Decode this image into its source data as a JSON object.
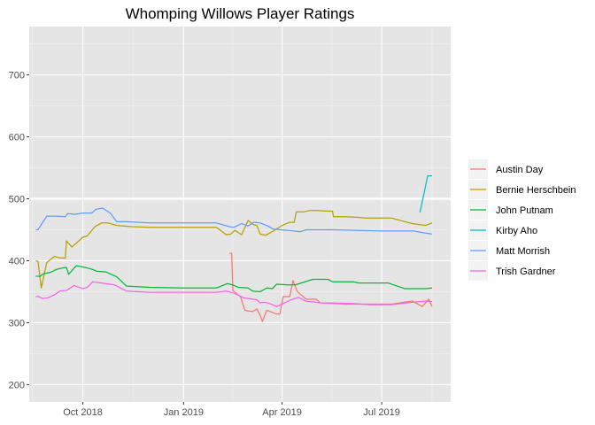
{
  "chart_data": {
    "type": "line",
    "title": "Whomping Willows Player Ratings",
    "xlabel": "",
    "ylabel": "",
    "xlim": [
      "2018-08-13",
      "2019-09-02"
    ],
    "ylim": [
      172,
      778
    ],
    "x_ticks": [
      {
        "date": "2018-10-01",
        "label": "Oct 2018"
      },
      {
        "date": "2019-01-01",
        "label": "Jan 2019"
      },
      {
        "date": "2019-04-01",
        "label": "Apr 2019"
      },
      {
        "date": "2019-07-01",
        "label": "Jul 2019"
      }
    ],
    "y_ticks": [
      200,
      300,
      400,
      500,
      600,
      700
    ],
    "reference_line": {
      "y": 500,
      "color": "#ffffff"
    },
    "grid": true,
    "background": "#e5e5e5",
    "legend_position": "right",
    "series": [
      {
        "name": "Austin Day",
        "color": "#F8766D",
        "points": [
          [
            "2019-02-12",
            412
          ],
          [
            "2019-02-14",
            412
          ],
          [
            "2019-02-15",
            352
          ],
          [
            "2019-02-22",
            342
          ],
          [
            "2019-02-26",
            320
          ],
          [
            "2019-03-05",
            318
          ],
          [
            "2019-03-09",
            322
          ],
          [
            "2019-03-12",
            312
          ],
          [
            "2019-03-14",
            302
          ],
          [
            "2019-03-18",
            320
          ],
          [
            "2019-03-27",
            314
          ],
          [
            "2019-03-30",
            314
          ],
          [
            "2019-04-02",
            342
          ],
          [
            "2019-04-08",
            342
          ],
          [
            "2019-04-11",
            368
          ],
          [
            "2019-04-15",
            350
          ],
          [
            "2019-04-23",
            338
          ],
          [
            "2019-05-02",
            338
          ],
          [
            "2019-05-06",
            332
          ],
          [
            "2019-05-28",
            330
          ],
          [
            "2019-06-20",
            330
          ],
          [
            "2019-07-10",
            330
          ],
          [
            "2019-07-29",
            335
          ],
          [
            "2019-08-07",
            326
          ],
          [
            "2019-08-13",
            338
          ],
          [
            "2019-08-16",
            326
          ]
        ]
      },
      {
        "name": "Bernie Herschbein",
        "color": "#B79F00",
        "points": [
          [
            "2018-08-19",
            400
          ],
          [
            "2018-08-21",
            399
          ],
          [
            "2018-08-24",
            356
          ],
          [
            "2018-08-29",
            397
          ],
          [
            "2018-09-05",
            407
          ],
          [
            "2018-09-09",
            405
          ],
          [
            "2018-09-15",
            404
          ],
          [
            "2018-09-16",
            432
          ],
          [
            "2018-09-21",
            422
          ],
          [
            "2018-10-01",
            438
          ],
          [
            "2018-10-05",
            440
          ],
          [
            "2018-10-12",
            455
          ],
          [
            "2018-10-18",
            461
          ],
          [
            "2018-10-24",
            461
          ],
          [
            "2018-11-01",
            457
          ],
          [
            "2018-11-15",
            455
          ],
          [
            "2018-12-01",
            454
          ],
          [
            "2019-01-01",
            454
          ],
          [
            "2019-01-31",
            454
          ],
          [
            "2019-02-03",
            450
          ],
          [
            "2019-02-09",
            442
          ],
          [
            "2019-02-13",
            443
          ],
          [
            "2019-02-17",
            449
          ],
          [
            "2019-02-23",
            442
          ],
          [
            "2019-03-01",
            465
          ],
          [
            "2019-03-06",
            458
          ],
          [
            "2019-03-09",
            457
          ],
          [
            "2019-03-12",
            443
          ],
          [
            "2019-03-17",
            441
          ],
          [
            "2019-03-24",
            448
          ],
          [
            "2019-04-01",
            457
          ],
          [
            "2019-04-08",
            462
          ],
          [
            "2019-04-12",
            462
          ],
          [
            "2019-04-14",
            479
          ],
          [
            "2019-04-21",
            479
          ],
          [
            "2019-04-26",
            481
          ],
          [
            "2019-05-03",
            481
          ],
          [
            "2019-05-14",
            480
          ],
          [
            "2019-05-17",
            480
          ],
          [
            "2019-05-18",
            471
          ],
          [
            "2019-05-28",
            471
          ],
          [
            "2019-06-10",
            470
          ],
          [
            "2019-06-16",
            469
          ],
          [
            "2019-07-01",
            469
          ],
          [
            "2019-07-10",
            469
          ],
          [
            "2019-07-20",
            464
          ],
          [
            "2019-07-29",
            460
          ],
          [
            "2019-08-10",
            457
          ],
          [
            "2019-08-16",
            461
          ]
        ]
      },
      {
        "name": "John Putnam",
        "color": "#00BA38",
        "points": [
          [
            "2018-08-19",
            375
          ],
          [
            "2018-08-23",
            375
          ],
          [
            "2018-08-26",
            379
          ],
          [
            "2018-09-01",
            381
          ],
          [
            "2018-09-07",
            386
          ],
          [
            "2018-09-14",
            389
          ],
          [
            "2018-09-16",
            389
          ],
          [
            "2018-09-18",
            378
          ],
          [
            "2018-09-25",
            392
          ],
          [
            "2018-10-01",
            390
          ],
          [
            "2018-10-08",
            387
          ],
          [
            "2018-10-14",
            383
          ],
          [
            "2018-10-22",
            382
          ],
          [
            "2018-11-01",
            374
          ],
          [
            "2018-11-10",
            359
          ],
          [
            "2018-12-01",
            357
          ],
          [
            "2019-01-01",
            356
          ],
          [
            "2019-01-31",
            356
          ],
          [
            "2019-02-10",
            363
          ],
          [
            "2019-02-15",
            361
          ],
          [
            "2019-02-20",
            357
          ],
          [
            "2019-03-01",
            356
          ],
          [
            "2019-03-05",
            351
          ],
          [
            "2019-03-12",
            350
          ],
          [
            "2019-03-18",
            356
          ],
          [
            "2019-03-23",
            355
          ],
          [
            "2019-03-27",
            362
          ],
          [
            "2019-04-07",
            361
          ],
          [
            "2019-04-10",
            361
          ],
          [
            "2019-04-13",
            361
          ],
          [
            "2019-04-22",
            366
          ],
          [
            "2019-04-29",
            370
          ],
          [
            "2019-05-13",
            370
          ],
          [
            "2019-05-17",
            366
          ],
          [
            "2019-06-05",
            366
          ],
          [
            "2019-06-10",
            364
          ],
          [
            "2019-07-07",
            364
          ],
          [
            "2019-07-22",
            355
          ],
          [
            "2019-08-10",
            355
          ],
          [
            "2019-08-16",
            356
          ]
        ]
      },
      {
        "name": "Kirby Aho",
        "color": "#00BFC4",
        "points": [
          [
            "2019-08-05",
            478
          ],
          [
            "2019-08-12",
            537
          ],
          [
            "2019-08-16",
            537
          ]
        ]
      },
      {
        "name": "Matt Morrish",
        "color": "#619CFF",
        "points": [
          [
            "2018-08-19",
            450
          ],
          [
            "2018-08-21",
            450
          ],
          [
            "2018-08-29",
            472
          ],
          [
            "2018-09-07",
            472
          ],
          [
            "2018-09-15",
            471
          ],
          [
            "2018-09-17",
            476
          ],
          [
            "2018-09-24",
            475
          ],
          [
            "2018-10-01",
            477
          ],
          [
            "2018-10-09",
            477
          ],
          [
            "2018-10-13",
            483
          ],
          [
            "2018-10-19",
            485
          ],
          [
            "2018-10-26",
            477
          ],
          [
            "2018-11-01",
            463
          ],
          [
            "2018-11-10",
            463
          ],
          [
            "2018-12-01",
            461
          ],
          [
            "2019-01-01",
            461
          ],
          [
            "2019-01-31",
            461
          ],
          [
            "2019-02-12",
            455
          ],
          [
            "2019-02-16",
            454
          ],
          [
            "2019-02-23",
            460
          ],
          [
            "2019-03-01",
            456
          ],
          [
            "2019-03-06",
            462
          ],
          [
            "2019-03-12",
            461
          ],
          [
            "2019-03-19",
            456
          ],
          [
            "2019-03-24",
            451
          ],
          [
            "2019-04-07",
            449
          ],
          [
            "2019-04-12",
            448
          ],
          [
            "2019-04-18",
            447
          ],
          [
            "2019-04-23",
            450
          ],
          [
            "2019-05-10",
            450
          ],
          [
            "2019-05-17",
            450
          ],
          [
            "2019-06-10",
            449
          ],
          [
            "2019-07-01",
            448
          ],
          [
            "2019-07-30",
            448
          ],
          [
            "2019-08-05",
            446
          ],
          [
            "2019-08-16",
            443
          ]
        ]
      },
      {
        "name": "Trish Gardner",
        "color": "#F564E3",
        "points": [
          [
            "2018-08-19",
            342
          ],
          [
            "2018-08-22",
            342
          ],
          [
            "2018-08-25",
            339
          ],
          [
            "2018-08-30",
            340
          ],
          [
            "2018-09-05",
            345
          ],
          [
            "2018-09-10",
            351
          ],
          [
            "2018-09-16",
            352
          ],
          [
            "2018-09-23",
            360
          ],
          [
            "2018-10-01",
            355
          ],
          [
            "2018-10-05",
            357
          ],
          [
            "2018-10-10",
            366
          ],
          [
            "2018-10-18",
            364
          ],
          [
            "2018-10-30",
            361
          ],
          [
            "2018-11-10",
            351
          ],
          [
            "2018-12-01",
            349
          ],
          [
            "2019-01-01",
            349
          ],
          [
            "2019-01-31",
            349
          ],
          [
            "2019-02-09",
            351
          ],
          [
            "2019-02-17",
            347
          ],
          [
            "2019-02-25",
            340
          ],
          [
            "2019-03-01",
            339
          ],
          [
            "2019-03-09",
            337
          ],
          [
            "2019-03-12",
            332
          ],
          [
            "2019-03-16",
            333
          ],
          [
            "2019-03-22",
            330
          ],
          [
            "2019-03-27",
            326
          ],
          [
            "2019-04-01",
            330
          ],
          [
            "2019-04-08",
            336
          ],
          [
            "2019-04-16",
            341
          ],
          [
            "2019-04-22",
            335
          ],
          [
            "2019-05-06",
            332
          ],
          [
            "2019-06-05",
            331
          ],
          [
            "2019-06-20",
            329
          ],
          [
            "2019-07-10",
            329
          ],
          [
            "2019-07-29",
            333
          ],
          [
            "2019-08-10",
            335
          ],
          [
            "2019-08-16",
            334
          ]
        ]
      }
    ]
  }
}
